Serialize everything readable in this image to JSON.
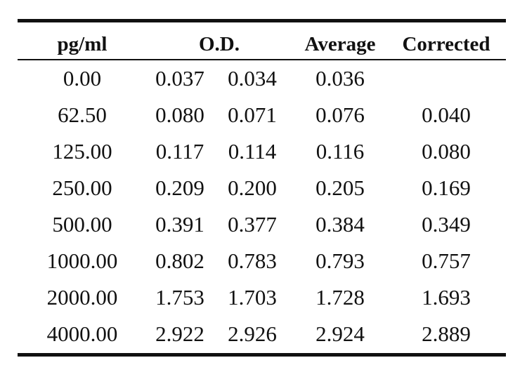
{
  "table": {
    "headers": {
      "concentration": "pg/ml",
      "od": "O.D.",
      "average": "Average",
      "corrected": "Corrected"
    },
    "rows": [
      {
        "conc": "0.00",
        "od1": "0.037",
        "od2": "0.034",
        "avg": "0.036",
        "corr": ""
      },
      {
        "conc": "62.50",
        "od1": "0.080",
        "od2": "0.071",
        "avg": "0.076",
        "corr": "0.040"
      },
      {
        "conc": "125.00",
        "od1": "0.117",
        "od2": "0.114",
        "avg": "0.116",
        "corr": "0.080"
      },
      {
        "conc": "250.00",
        "od1": "0.209",
        "od2": "0.200",
        "avg": "0.205",
        "corr": "0.169"
      },
      {
        "conc": "500.00",
        "od1": "0.391",
        "od2": "0.377",
        "avg": "0.384",
        "corr": "0.349"
      },
      {
        "conc": "1000.00",
        "od1": "0.802",
        "od2": "0.783",
        "avg": "0.793",
        "corr": "0.757"
      },
      {
        "conc": "2000.00",
        "od1": "1.753",
        "od2": "1.703",
        "avg": "1.728",
        "corr": "1.693"
      },
      {
        "conc": "4000.00",
        "od1": "2.922",
        "od2": "2.926",
        "avg": "2.924",
        "corr": "2.889"
      }
    ]
  }
}
